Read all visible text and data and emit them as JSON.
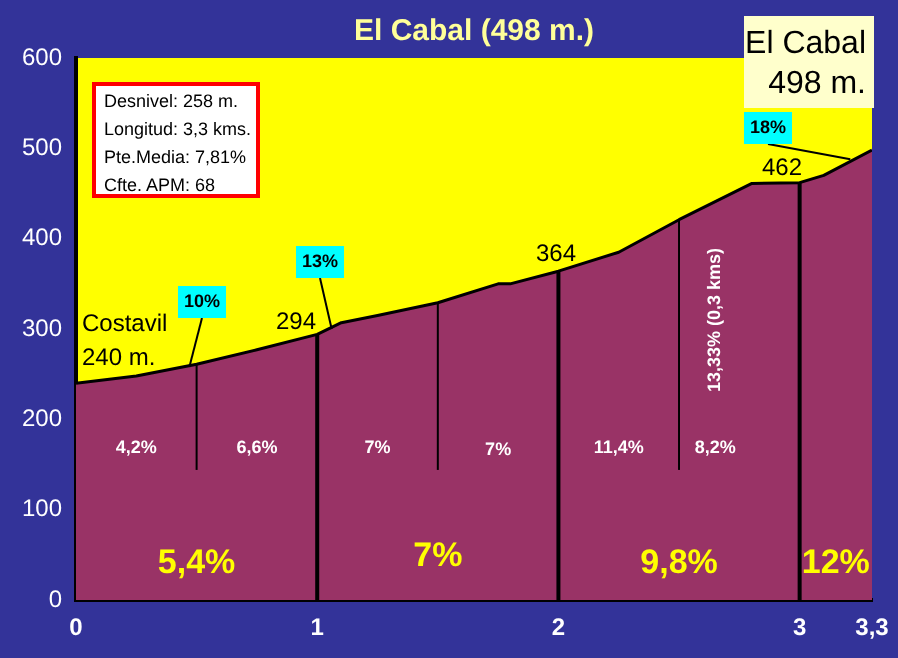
{
  "chart_data": {
    "type": "area",
    "title": "El Cabal (498 m.)",
    "x": [
      0,
      0.25,
      0.5,
      0.75,
      1,
      1.1,
      1.25,
      1.5,
      1.75,
      1.8,
      2,
      2.25,
      2.5,
      2.8,
      3,
      3.1,
      3.3
    ],
    "series": [
      {
        "color": "#993366",
        "values": [
          240,
          248,
          261,
          277,
          294,
          307,
          315,
          329,
          350,
          350,
          364,
          385,
          421,
          461,
          462,
          470,
          498
        ]
      }
    ],
    "xlim": [
      0,
      3.3
    ],
    "xticks": [
      0,
      1,
      2,
      3,
      {
        "value": 3.3,
        "label": "3,3"
      }
    ],
    "ylim": [
      0,
      600
    ],
    "yticks": [
      0,
      100,
      200,
      300,
      400,
      500,
      600
    ],
    "grid": false,
    "legend": false,
    "ref_lines": [
      {
        "axis": "x",
        "value": 0.5,
        "color": "#000000"
      },
      {
        "axis": "x",
        "value": 1,
        "color": "#000000"
      },
      {
        "axis": "x",
        "value": 1.5,
        "color": "#000000"
      },
      {
        "axis": "x",
        "value": 2,
        "color": "#000000"
      },
      {
        "axis": "x",
        "value": 2.5,
        "color": "#000000"
      },
      {
        "axis": "x",
        "value": 3,
        "color": "#000000"
      }
    ],
    "annotations": [
      "Desnivel: 258 m.",
      "Longitud: 3,3 kms.",
      "Pte.Media: 7,81%",
      "Cfte. APM: 68",
      "El Cabal",
      "498 m.",
      "Costavil",
      "240 m.",
      {
        "text": "294",
        "x": 1,
        "y": 294
      },
      {
        "text": "364",
        "x": 2,
        "y": 364
      },
      {
        "text": "462",
        "x": 2.9,
        "y": 462
      },
      {
        "text": "10%",
        "x": 0.47,
        "y": 258
      },
      {
        "text": "13%",
        "x": 1.06,
        "y": 300
      },
      {
        "text": "18%",
        "x": 3.21,
        "y": 488
      },
      "4,2%",
      "6,6%",
      "7%",
      "7%",
      "11,4%",
      "8,2%",
      "13,33% (0,3 kms)",
      "5,4%",
      "7%",
      "9,8%",
      "12%"
    ]
  }
}
